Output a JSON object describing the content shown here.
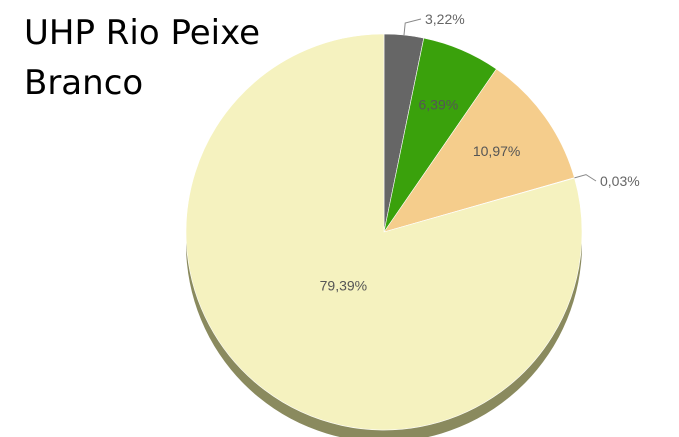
{
  "chart_data": {
    "type": "pie",
    "title": "UHP Rio Peixe Branco",
    "slices": [
      {
        "label": "3,22%",
        "value": 3.22,
        "color": "#666666",
        "label_color": "#666666"
      },
      {
        "label": "6,39%",
        "value": 6.39,
        "color": "#3aa10c",
        "label_color": "#555555"
      },
      {
        "label": "10,97%",
        "value": 10.97,
        "color": "#f5cd8c",
        "label_color": "#555555"
      },
      {
        "label": "0,03%",
        "value": 0.03,
        "color": "#b0c8e8",
        "label_color": "#666666"
      },
      {
        "label": "79,39%",
        "value": 79.39,
        "color": "#f5f2bf",
        "label_color": "#555555"
      }
    ],
    "start": "12 o'clock",
    "direction": "clockwise",
    "shadow_color": "#8a8a5e",
    "legend": "none"
  }
}
